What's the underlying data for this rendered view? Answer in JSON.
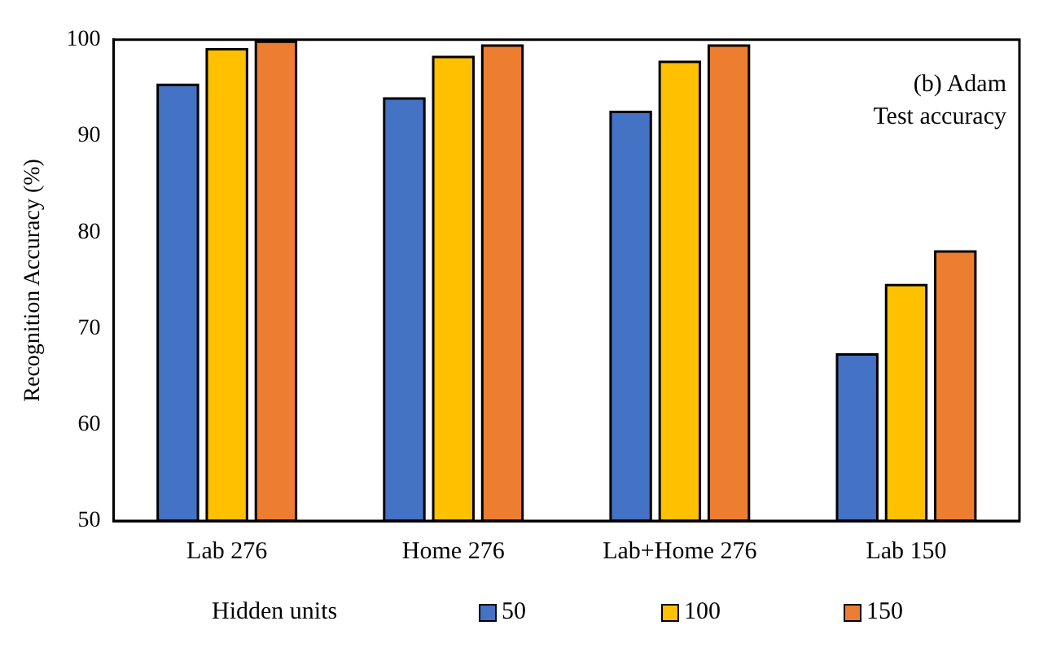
{
  "chart_data": {
    "type": "bar",
    "ylabel": "Recognition Accuracy (%)",
    "legend_title": "Hidden units",
    "annotations": [
      "(b) Adam",
      "Test accuracy"
    ],
    "categories": [
      "Lab 276",
      "Home 276",
      "Lab+Home 276",
      "Lab 150"
    ],
    "series": [
      {
        "name": "50",
        "color": "#4472c4",
        "values": [
          95.3,
          93.9,
          92.5,
          67.3
        ]
      },
      {
        "name": "100",
        "color": "#ffc000",
        "values": [
          99.0,
          98.2,
          97.7,
          74.5
        ]
      },
      {
        "name": "150",
        "color": "#ed7d31",
        "values": [
          99.8,
          99.4,
          99.4,
          78.0
        ]
      }
    ],
    "ylim": [
      50,
      100
    ],
    "yticks": [
      50,
      60,
      70,
      80,
      90,
      100
    ],
    "grid": false,
    "legend": "bottom"
  }
}
